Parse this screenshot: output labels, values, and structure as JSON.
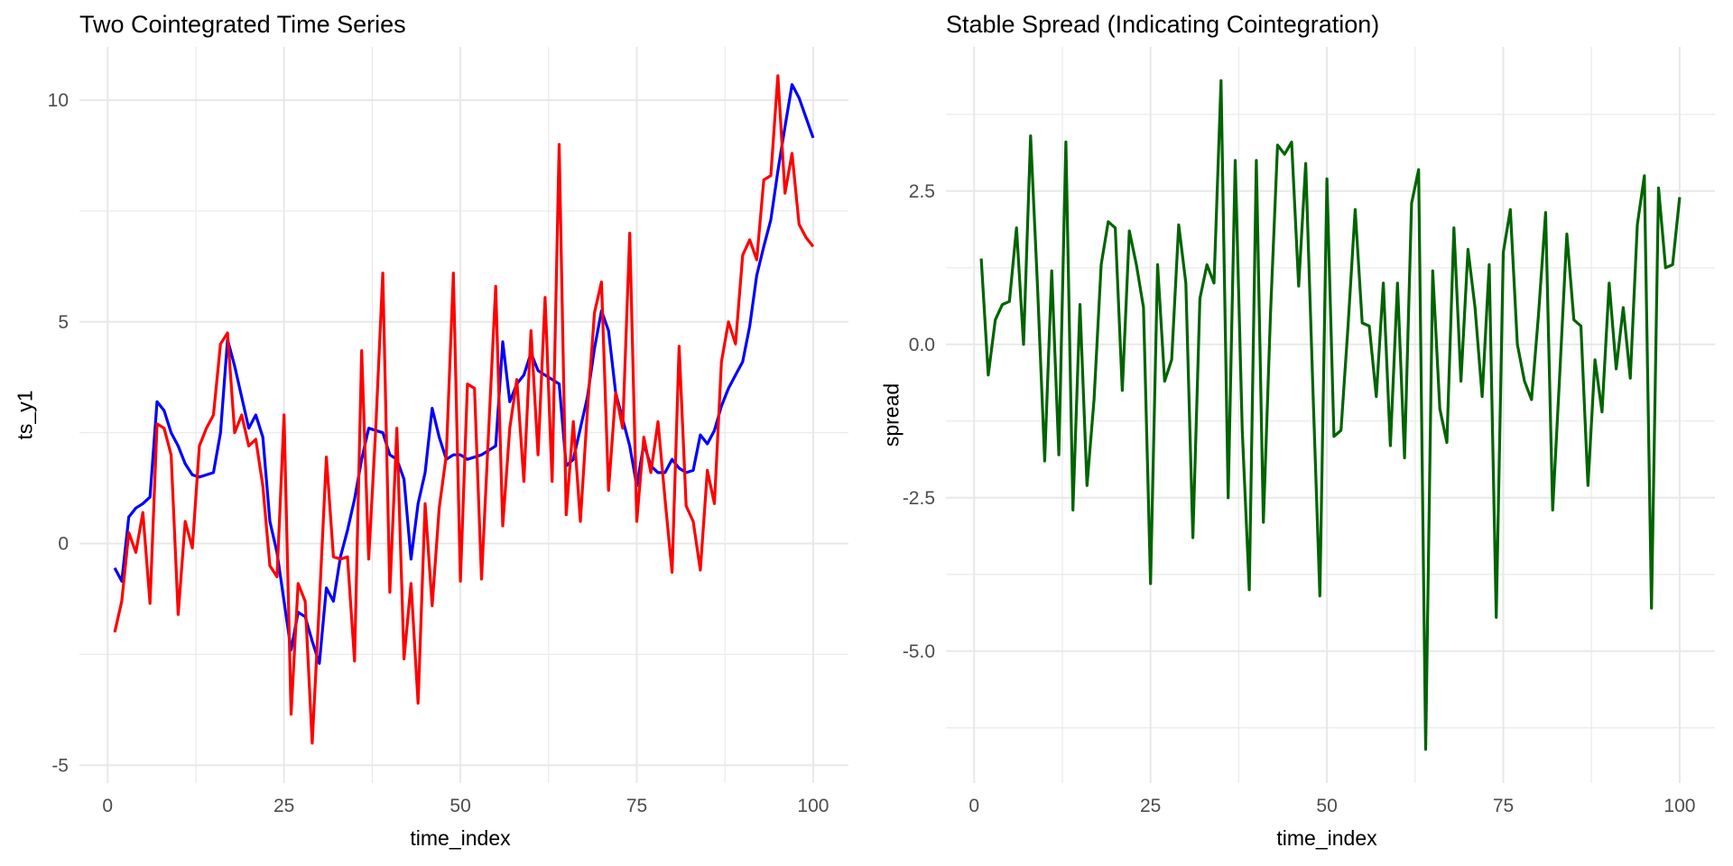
{
  "page": {
    "background": "#ffffff",
    "grid_color": "#e8e8e8",
    "tick_text_color": "#4d4d4d"
  },
  "chart_data": [
    {
      "type": "line",
      "title": "Two Cointegrated Time Series",
      "xlabel": "time_index",
      "ylabel": "ts_y1",
      "legend_position": "none",
      "grid": true,
      "x_range": {
        "start": 1,
        "end": 100,
        "step": 1
      },
      "xlim": [
        -4,
        105
      ],
      "ylim": [
        -5.4,
        11.2
      ],
      "xticks": [
        0,
        25,
        50,
        75,
        100
      ],
      "xtick_labels": [
        "0",
        "25",
        "50",
        "75",
        "100"
      ],
      "x_minor": [
        12.5,
        37.5,
        62.5,
        87.5
      ],
      "yticks": [
        -5,
        0,
        5,
        10
      ],
      "ytick_labels": [
        "-5",
        "0",
        "5",
        "10"
      ],
      "y_minor": [
        -2.5,
        2.5,
        7.5
      ],
      "series": [
        {
          "name": "blue-series",
          "color": "#0000ff",
          "values": [
            -0.55,
            -0.85,
            0.6,
            0.8,
            0.9,
            1.05,
            3.2,
            3.0,
            2.5,
            2.2,
            1.8,
            1.55,
            1.5,
            1.55,
            1.6,
            2.5,
            4.6,
            4.0,
            3.3,
            2.6,
            2.9,
            2.4,
            0.5,
            -0.2,
            -1.3,
            -2.4,
            -1.55,
            -1.65,
            -2.2,
            -2.7,
            -1.0,
            -1.3,
            -0.3,
            0.3,
            1.0,
            1.9,
            2.6,
            2.55,
            2.5,
            2.0,
            1.9,
            1.45,
            -0.35,
            0.9,
            1.6,
            3.05,
            2.4,
            1.9,
            2.0,
            2.0,
            1.9,
            1.95,
            2.0,
            2.1,
            2.2,
            4.55,
            3.2,
            3.6,
            3.8,
            4.3,
            3.9,
            3.8,
            3.7,
            3.6,
            1.75,
            1.9,
            2.6,
            3.3,
            4.4,
            5.25,
            4.8,
            3.4,
            2.8,
            2.2,
            1.3,
            2.25,
            1.75,
            1.6,
            1.6,
            1.9,
            1.7,
            1.6,
            1.65,
            2.45,
            2.25,
            2.55,
            3.1,
            3.5,
            3.8,
            4.1,
            4.9,
            6.05,
            6.7,
            7.3,
            8.4,
            9.4,
            10.35,
            10.05,
            9.6,
            9.15
          ]
        },
        {
          "name": "red-series",
          "color": "#ff0000",
          "values": [
            -2.0,
            -1.3,
            0.25,
            -0.2,
            0.7,
            -1.35,
            2.7,
            2.6,
            2.0,
            -1.6,
            0.5,
            -0.1,
            2.2,
            2.6,
            2.9,
            4.5,
            4.75,
            2.5,
            2.9,
            2.2,
            2.35,
            1.3,
            -0.5,
            -0.75,
            2.9,
            -3.85,
            -0.9,
            -1.3,
            -4.5,
            -1.35,
            1.95,
            -0.3,
            -0.35,
            -0.3,
            -2.65,
            4.35,
            -0.35,
            2.6,
            6.1,
            -1.1,
            2.6,
            -2.6,
            -0.9,
            -3.6,
            0.9,
            -1.4,
            0.8,
            2.0,
            6.1,
            -0.85,
            3.6,
            3.5,
            -0.8,
            2.55,
            5.8,
            0.4,
            2.6,
            3.7,
            1.4,
            4.8,
            2.0,
            5.55,
            1.4,
            9.0,
            0.65,
            2.75,
            0.5,
            3.0,
            5.2,
            5.9,
            1.2,
            3.4,
            2.6,
            7.0,
            0.5,
            2.4,
            1.6,
            2.75,
            1.0,
            -0.65,
            4.45,
            0.85,
            0.5,
            -0.6,
            1.65,
            0.9,
            4.1,
            5.0,
            4.5,
            6.5,
            6.85,
            6.4,
            8.2,
            8.3,
            10.55,
            7.9,
            8.8,
            7.2,
            6.9,
            6.7
          ]
        }
      ]
    },
    {
      "type": "line",
      "title": "Stable Spread (Indicating Cointegration)",
      "xlabel": "time_index",
      "ylabel": "spread",
      "legend_position": "none",
      "grid": true,
      "x_range": {
        "start": 1,
        "end": 100,
        "step": 1
      },
      "xlim": [
        -4,
        105
      ],
      "ylim": [
        -7.15,
        4.85
      ],
      "xticks": [
        0,
        25,
        50,
        75,
        100
      ],
      "xtick_labels": [
        "0",
        "25",
        "50",
        "75",
        "100"
      ],
      "x_minor": [
        12.5,
        37.5,
        62.5,
        87.5
      ],
      "yticks": [
        -5.0,
        -2.5,
        0.0,
        2.5
      ],
      "ytick_labels": [
        "-5.0",
        "-2.5",
        "0.0",
        "2.5"
      ],
      "y_minor": [
        -6.25,
        -3.75,
        -1.25,
        1.25,
        3.75
      ],
      "series": [
        {
          "name": "spread-series",
          "color": "#006400",
          "values": [
            1.4,
            -0.5,
            0.4,
            0.65,
            0.7,
            1.9,
            0.0,
            3.4,
            0.9,
            -1.9,
            1.2,
            -1.8,
            3.3,
            -2.7,
            0.65,
            -2.3,
            -0.9,
            1.3,
            2.0,
            1.9,
            -0.75,
            1.85,
            1.3,
            0.6,
            -3.9,
            1.3,
            -0.6,
            -0.25,
            1.95,
            1.0,
            -3.15,
            0.75,
            1.3,
            1.0,
            4.3,
            -2.5,
            3.0,
            -1.4,
            -4.0,
            3.0,
            -2.9,
            0.5,
            3.25,
            3.1,
            3.3,
            0.95,
            2.95,
            -0.7,
            -4.1,
            2.7,
            -1.5,
            -1.4,
            0.3,
            2.2,
            0.35,
            0.3,
            -0.85,
            1.0,
            -1.65,
            1.0,
            -1.85,
            2.3,
            2.85,
            -6.6,
            1.2,
            -1.05,
            -1.6,
            1.9,
            -0.6,
            1.55,
            0.6,
            -0.85,
            1.3,
            -4.45,
            1.5,
            2.2,
            0.0,
            -0.6,
            -0.9,
            0.5,
            2.15,
            -2.7,
            -0.5,
            1.8,
            0.4,
            0.3,
            -2.3,
            -0.25,
            -1.1,
            1.0,
            -0.4,
            0.6,
            -0.55,
            1.95,
            2.75,
            -4.3,
            2.55,
            1.25,
            1.3,
            2.4
          ]
        }
      ]
    }
  ]
}
